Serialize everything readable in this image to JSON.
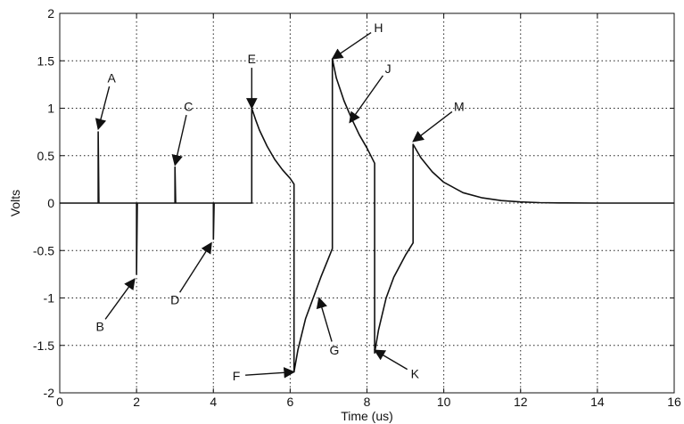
{
  "chart_data": {
    "type": "line",
    "title": "",
    "xlabel": "Time (us)",
    "ylabel": "Volts",
    "xlim": [
      0,
      16
    ],
    "ylim": [
      -2,
      2
    ],
    "x_ticks": [
      0,
      2,
      4,
      6,
      8,
      10,
      12,
      14,
      16
    ],
    "x_tick_labels": [
      "0",
      "2",
      "4",
      "6",
      "8",
      "10",
      "12",
      "14",
      "16"
    ],
    "y_ticks": [
      -2,
      -1.5,
      -1,
      -0.5,
      0,
      0.5,
      1,
      1.5,
      2
    ],
    "y_tick_labels": [
      "-2",
      "-1.5",
      "-1",
      "-0.5",
      "0",
      "0.5",
      "1",
      "1.5",
      "2"
    ],
    "grid": true,
    "grid_style": "dotted",
    "legend": "none",
    "line_color": "#111111",
    "series": [
      {
        "x": [
          0,
          1,
          1,
          1.02,
          2,
          2,
          2.02,
          3,
          3,
          3.02,
          4,
          4,
          4.02,
          5,
          5,
          5.1,
          5.2,
          5.4,
          5.6,
          5.8,
          6.0,
          6.1,
          6.1,
          6.2,
          6.4,
          6.6,
          6.8,
          7.0,
          7.1,
          7.1,
          7.2,
          7.4,
          7.6,
          7.8,
          8.0,
          8.2,
          8.2,
          8.3,
          8.5,
          8.7,
          9.0,
          9.2,
          9.2,
          9.4,
          9.7,
          10.0,
          10.5,
          11.0,
          11.5,
          12.0,
          12.5,
          13.0,
          14.0,
          15.0,
          16.0
        ],
        "y": [
          0,
          0,
          0.75,
          0,
          0,
          -0.75,
          0,
          0,
          0.38,
          0,
          0,
          -0.38,
          0,
          0,
          1.0,
          0.88,
          0.77,
          0.6,
          0.46,
          0.35,
          0.26,
          0.2,
          -1.78,
          -1.55,
          -1.22,
          -1.0,
          -0.78,
          -0.58,
          -0.48,
          1.52,
          1.32,
          1.08,
          0.89,
          0.72,
          0.58,
          0.42,
          -1.58,
          -1.34,
          -1.0,
          -0.78,
          -0.55,
          -0.42,
          0.62,
          0.48,
          0.33,
          0.22,
          0.11,
          0.055,
          0.026,
          0.012,
          0.005,
          0.002,
          0.0,
          0.0,
          0.0
        ]
      }
    ],
    "annotations": [
      {
        "label": "A",
        "x": 1.0,
        "y": 0.78,
        "text_x": 1.35,
        "text_y": 1.32
      },
      {
        "label": "B",
        "x": 1.95,
        "y": -0.8,
        "text_x": 1.05,
        "text_y": -1.3
      },
      {
        "label": "C",
        "x": 3.0,
        "y": 0.4,
        "text_x": 3.35,
        "text_y": 1.02
      },
      {
        "label": "D",
        "x": 3.95,
        "y": -0.42,
        "text_x": 3.0,
        "text_y": -1.02
      },
      {
        "label": "E",
        "x": 5.0,
        "y": 1.0,
        "text_x": 5.0,
        "text_y": 1.52
      },
      {
        "label": "F",
        "x": 6.1,
        "y": -1.78,
        "text_x": 4.6,
        "text_y": -1.82
      },
      {
        "label": "G",
        "x": 6.75,
        "y": -1.0,
        "text_x": 7.15,
        "text_y": -1.55
      },
      {
        "label": "H",
        "x": 7.1,
        "y": 1.52,
        "text_x": 8.3,
        "text_y": 1.85
      },
      {
        "label": "J",
        "x": 7.55,
        "y": 0.85,
        "text_x": 8.55,
        "text_y": 1.42
      },
      {
        "label": "K",
        "x": 8.2,
        "y": -1.55,
        "text_x": 9.25,
        "text_y": -1.8
      },
      {
        "label": "M",
        "x": 9.2,
        "y": 0.65,
        "text_x": 10.4,
        "text_y": 1.02
      }
    ]
  }
}
